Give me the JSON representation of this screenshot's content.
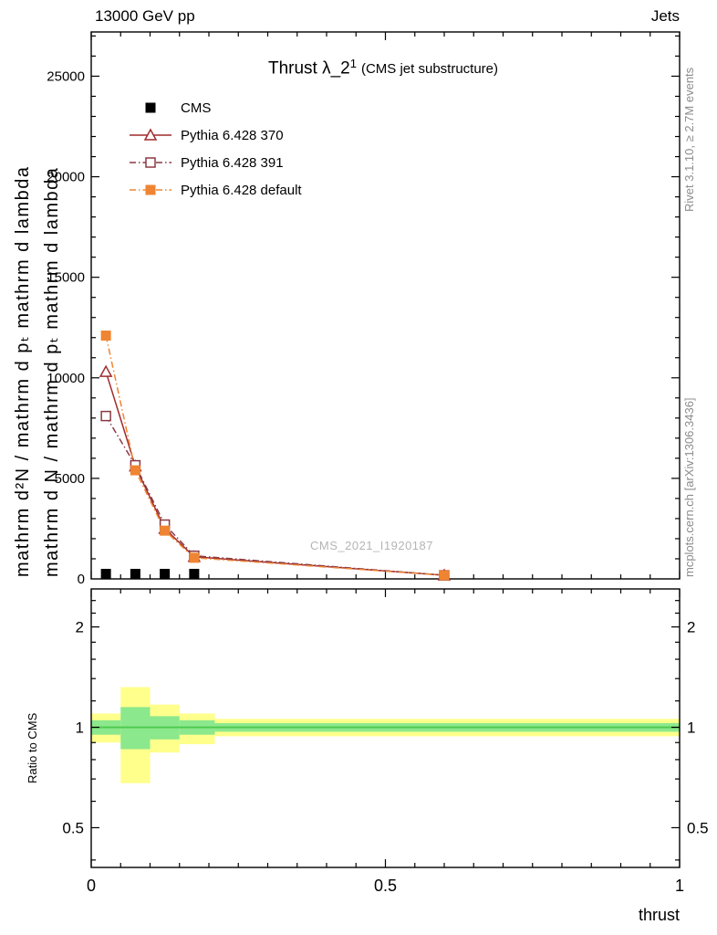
{
  "header": {
    "left": "13000 GeV pp",
    "right": "Jets"
  },
  "title": {
    "main": "Thrust λ_2",
    "sup": "1",
    "paren": "(CMS jet substructure)"
  },
  "watermark": "CMS_2021_I1920187",
  "side_notes": {
    "rivet": "Rivet 3.1.10, ≥ 2.7M events",
    "mcplots": "mcplots.cern.ch [arXiv:1306.3436]"
  },
  "axis_labels": {
    "y_outer": "mathrm d²N / mathrm d pₜ mathrm d lambda",
    "y_inner": "mathrm d N / mathrm d pₜ mathrm d lambda",
    "ratio": "Ratio to CMS",
    "x": "thrust"
  },
  "chart_data": [
    {
      "type": "line",
      "title": "Thrust λ_2^1 (CMS jet substructure)",
      "xlabel": "thrust",
      "ylabel": "mathrm d²N / mathrm d pₜ mathrm d lambda",
      "xlim": [
        0,
        1
      ],
      "ylim": [
        0,
        27200
      ],
      "xticks": [
        0,
        0.5,
        1
      ],
      "yticks": [
        0,
        5000,
        10000,
        15000,
        20000,
        25000
      ],
      "grid": false,
      "legend_position": "upper-left",
      "x": [
        0.025,
        0.075,
        0.125,
        0.175,
        0.6
      ],
      "series": [
        {
          "name": "CMS",
          "color": "#000000",
          "marker": "square-filled",
          "line": "none",
          "x": [
            0.025,
            0.075,
            0.125,
            0.175
          ],
          "values": [
            250,
            250,
            250,
            250
          ]
        },
        {
          "name": "Pythia 6.428 370",
          "color": "#a02c2c",
          "marker": "triangle-open",
          "line": "solid",
          "values": [
            10300,
            5600,
            2500,
            1100,
            180
          ]
        },
        {
          "name": "Pythia 6.428 391",
          "color": "#8a3a42",
          "marker": "square-open",
          "line": "dashdot",
          "values": [
            8100,
            5650,
            2700,
            1150,
            180
          ]
        },
        {
          "name": "Pythia 6.428 default",
          "color": "#ef8532",
          "marker": "square-filled",
          "line": "dashdot",
          "values": [
            12100,
            5400,
            2400,
            1050,
            180
          ]
        }
      ]
    },
    {
      "type": "area",
      "ylabel": "Ratio to CMS",
      "yscale": "log",
      "ylim": [
        0.38,
        2.6
      ],
      "yticks": [
        0.5,
        1,
        2
      ],
      "reference_line": 1,
      "colors": {
        "yellow": "#ffff8c",
        "green": "#8ce88c",
        "line": "#4ec94e"
      },
      "bands": [
        {
          "x0": 0.0,
          "x1": 0.05,
          "yellow": [
            0.9,
            1.1
          ],
          "green": [
            0.95,
            1.05
          ]
        },
        {
          "x0": 0.05,
          "x1": 0.1,
          "yellow": [
            0.68,
            1.32
          ],
          "green": [
            0.86,
            1.15
          ]
        },
        {
          "x0": 0.1,
          "x1": 0.15,
          "yellow": [
            0.84,
            1.17
          ],
          "green": [
            0.92,
            1.08
          ]
        },
        {
          "x0": 0.15,
          "x1": 0.21,
          "yellow": [
            0.89,
            1.1
          ],
          "green": [
            0.95,
            1.05
          ]
        },
        {
          "x0": 0.21,
          "x1": 1.0,
          "yellow": [
            0.94,
            1.06
          ],
          "green": [
            0.97,
            1.03
          ]
        }
      ]
    }
  ]
}
